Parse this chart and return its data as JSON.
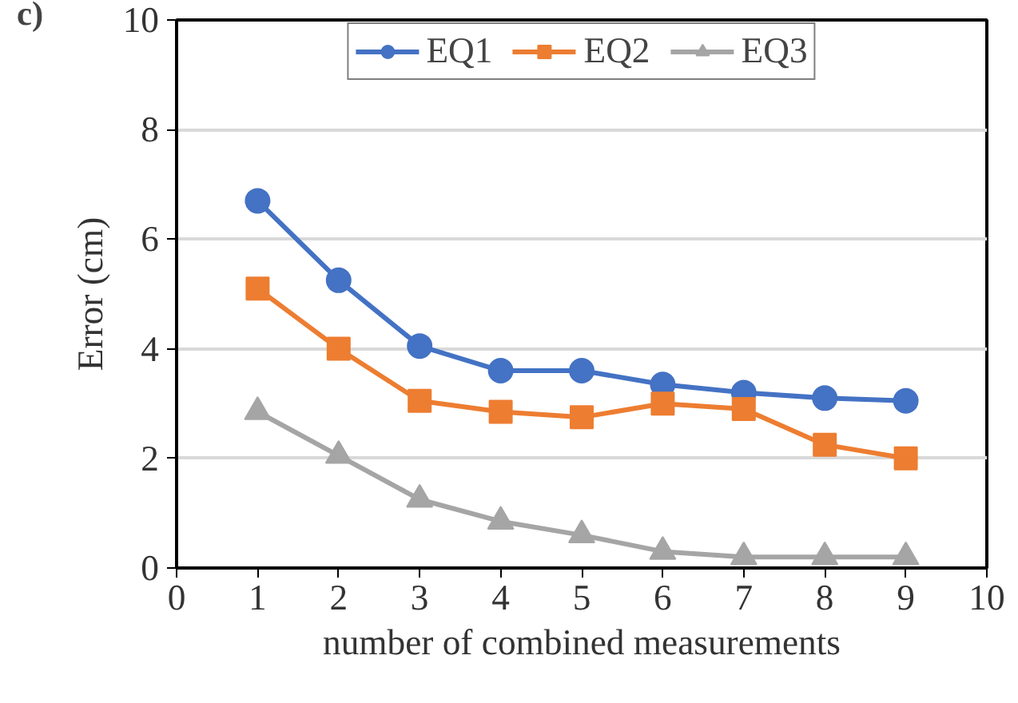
{
  "chart_data": {
    "type": "line",
    "xlabel": "number of combined measurements",
    "ylabel": "Error (cm)",
    "annotations": [
      "c)"
    ],
    "x": [
      1,
      2,
      3,
      4,
      5,
      6,
      7,
      8,
      9
    ],
    "series": [
      {
        "name": "EQ1",
        "color": "#4472c4",
        "marker": "circle",
        "values": [
          6.7,
          5.25,
          4.05,
          3.6,
          3.6,
          3.35,
          3.2,
          3.1,
          3.05
        ]
      },
      {
        "name": "EQ2",
        "color": "#ed7d31",
        "marker": "square",
        "values": [
          5.1,
          4.0,
          3.05,
          2.85,
          2.75,
          3.0,
          2.9,
          2.25,
          2.0
        ]
      },
      {
        "name": "EQ3",
        "color": "#a5a5a5",
        "marker": "triangle",
        "values": [
          2.85,
          2.05,
          1.25,
          0.85,
          0.6,
          0.3,
          0.2,
          0.2,
          0.2
        ]
      }
    ],
    "xlim": [
      0,
      10
    ],
    "xticks": [
      0,
      1,
      2,
      3,
      4,
      5,
      6,
      7,
      8,
      9,
      10
    ],
    "ylim": [
      0,
      10
    ],
    "yticks": [
      0,
      2,
      4,
      6,
      8,
      10
    ],
    "grid": "y",
    "legend": "top",
    "line_style": "solid"
  }
}
